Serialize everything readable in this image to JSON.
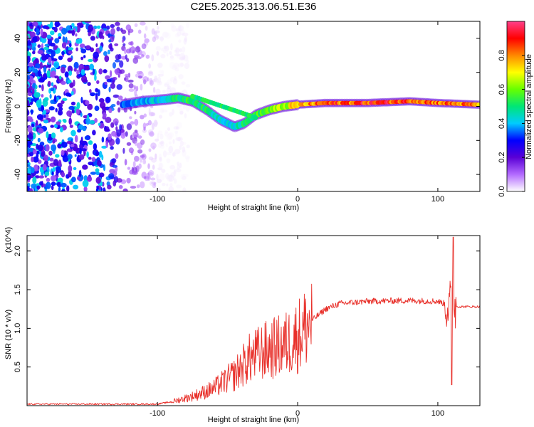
{
  "title": "C2E5.2025.313.06.51.E36",
  "chart_data": [
    {
      "type": "heatmap",
      "name": "spectrogram",
      "xlabel": "Height of straight line (km)",
      "ylabel": "Frequency (Hz)",
      "xlim": [
        -193,
        130
      ],
      "ylim": [
        -50,
        50
      ],
      "xticks": [
        -100,
        0,
        100
      ],
      "yticks": [
        -40,
        -20,
        0,
        20,
        40
      ],
      "colorbar": {
        "label": "Normalized spectral amplitude",
        "range": [
          0,
          1
        ],
        "ticks": [
          "0.0",
          "0.2",
          "0.4",
          "0.6",
          "0.8"
        ],
        "colors": [
          "#ffffff",
          "#b36bff",
          "#5a00d6",
          "#0000ff",
          "#00ccff",
          "#00e676",
          "#66ff00",
          "#ffff00",
          "#ff8800",
          "#ff0000",
          "#ff3f8a"
        ]
      },
      "ridge": [
        {
          "x": -125,
          "y": 1,
          "a": 0.35
        },
        {
          "x": -110,
          "y": 3,
          "a": 0.4
        },
        {
          "x": -95,
          "y": 4,
          "a": 0.45
        },
        {
          "x": -85,
          "y": 5,
          "a": 0.5
        },
        {
          "x": -75,
          "y": 3,
          "a": 0.55
        },
        {
          "x": -65,
          "y": -2,
          "a": 0.5
        },
        {
          "x": -55,
          "y": -8,
          "a": 0.45
        },
        {
          "x": -45,
          "y": -12,
          "a": 0.45
        },
        {
          "x": -38,
          "y": -10,
          "a": 0.5
        },
        {
          "x": -30,
          "y": -5,
          "a": 0.55
        },
        {
          "x": -20,
          "y": -2,
          "a": 0.6
        },
        {
          "x": -10,
          "y": 0,
          "a": 0.65
        },
        {
          "x": 0,
          "y": 1,
          "a": 0.75
        },
        {
          "x": 20,
          "y": 2,
          "a": 0.85
        },
        {
          "x": 50,
          "y": 2,
          "a": 0.9
        },
        {
          "x": 80,
          "y": 3,
          "a": 0.9
        },
        {
          "x": 100,
          "y": 2,
          "a": 0.85
        },
        {
          "x": 130,
          "y": 1,
          "a": 0.8
        }
      ]
    },
    {
      "type": "line",
      "name": "snr",
      "xlabel": "Height of straight line (km)",
      "ylabel": "SNR (10 * v/v)",
      "multiplier": "(x10^4)",
      "xlim": [
        -193,
        130
      ],
      "ylim": [
        0,
        2.2
      ],
      "xticks": [
        -100,
        0,
        100
      ],
      "yticks": [
        0.5,
        1.0,
        1.5,
        2.0
      ],
      "ytick_labels": [
        "0.5",
        "1.0",
        "1.5",
        "2.0"
      ],
      "color": "#e8302a",
      "envelope": [
        {
          "x": -193,
          "y": 0.02
        },
        {
          "x": -100,
          "y": 0.02
        },
        {
          "x": -90,
          "y": 0.05
        },
        {
          "x": -75,
          "y": 0.12
        },
        {
          "x": -60,
          "y": 0.22
        },
        {
          "x": -45,
          "y": 0.4
        },
        {
          "x": -35,
          "y": 0.6
        },
        {
          "x": -25,
          "y": 0.7
        },
        {
          "x": -15,
          "y": 0.75
        },
        {
          "x": -8,
          "y": 0.8
        },
        {
          "x": 0,
          "y": 0.9
        },
        {
          "x": 10,
          "y": 1.1
        },
        {
          "x": 20,
          "y": 1.25
        },
        {
          "x": 30,
          "y": 1.32
        },
        {
          "x": 50,
          "y": 1.35
        },
        {
          "x": 80,
          "y": 1.36
        },
        {
          "x": 100,
          "y": 1.35
        },
        {
          "x": 108,
          "y": 1.3
        },
        {
          "x": 115,
          "y": 1.28
        },
        {
          "x": 130,
          "y": 1.28
        }
      ],
      "peak": {
        "x": 111,
        "y": 2.18
      },
      "dip": {
        "x": 110,
        "y": 0.27
      }
    }
  ]
}
